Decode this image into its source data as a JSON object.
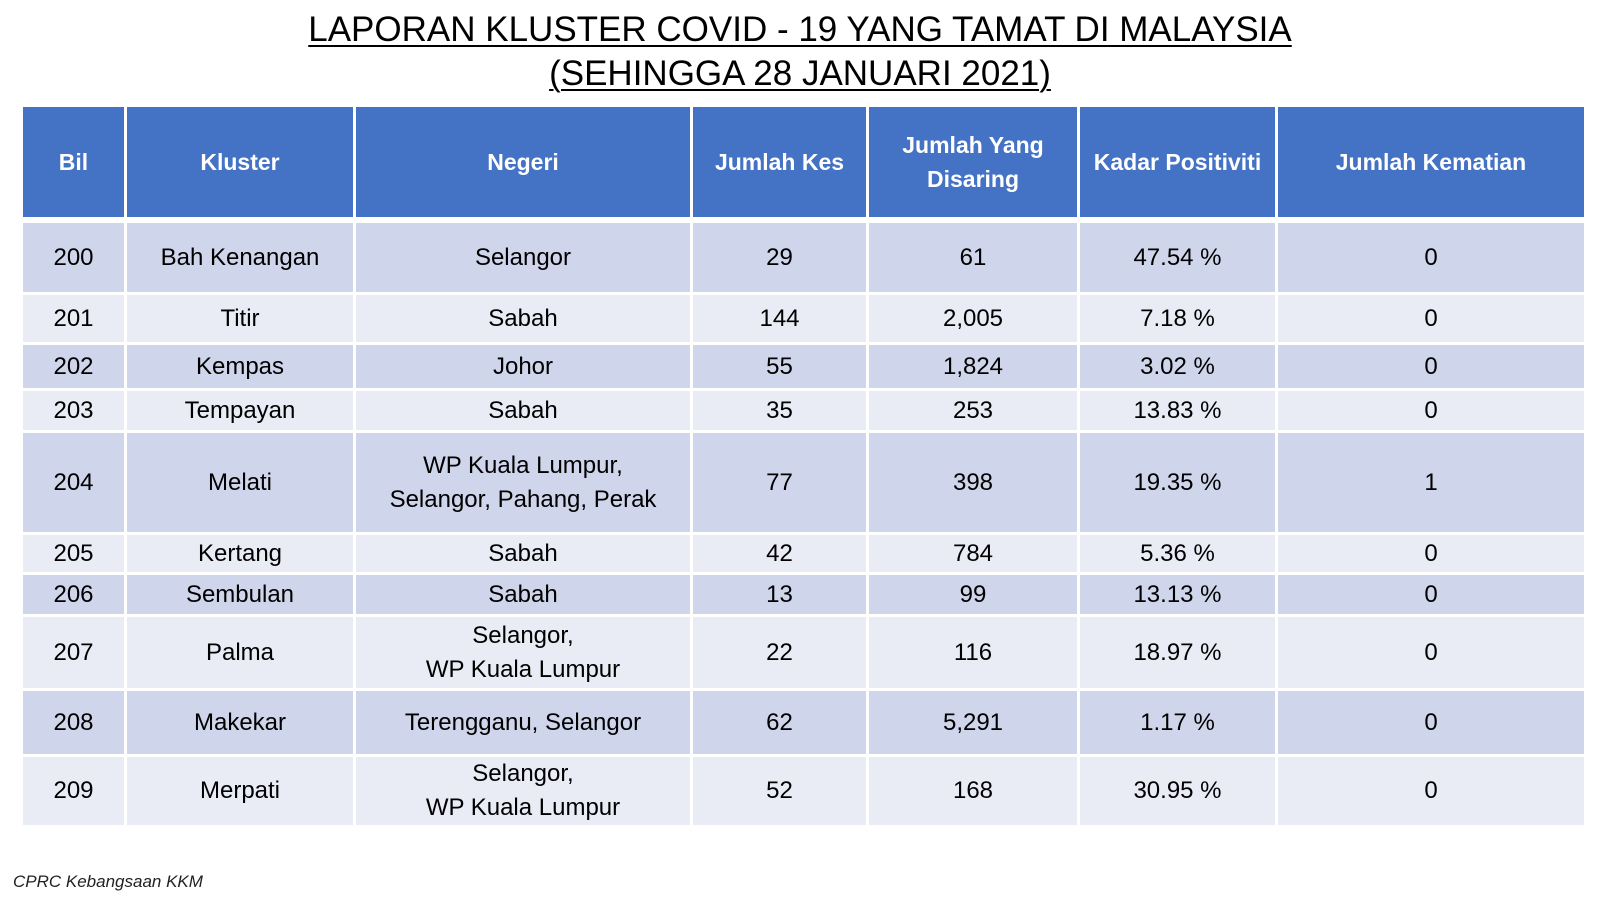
{
  "title": {
    "line1": "LAPORAN KLUSTER COVID - 19 YANG TAMAT DI MALAYSIA",
    "line2": "(SEHINGGA 28 JANUARI 2021)"
  },
  "table": {
    "headers": [
      "Bil",
      "Kluster",
      "Negeri",
      "Jumlah Kes",
      "Jumlah Yang Disaring",
      "Kadar Positiviti",
      "Jumlah Kematian"
    ],
    "rows": [
      {
        "bil": "200",
        "kluster": "Bah Kenangan",
        "negeri": "Selangor",
        "kes": "29",
        "disaring": "61",
        "positiviti": "47.54 %",
        "kematian": "0"
      },
      {
        "bil": "201",
        "kluster": "Titir",
        "negeri": "Sabah",
        "kes": "144",
        "disaring": "2,005",
        "positiviti": "7.18 %",
        "kematian": "0"
      },
      {
        "bil": "202",
        "kluster": "Kempas",
        "negeri": "Johor",
        "kes": "55",
        "disaring": "1,824",
        "positiviti": "3.02 %",
        "kematian": "0"
      },
      {
        "bil": "203",
        "kluster": "Tempayan",
        "negeri": "Sabah",
        "kes": "35",
        "disaring": "253",
        "positiviti": "13.83 %",
        "kematian": "0"
      },
      {
        "bil": "204",
        "kluster": "Melati",
        "negeri": "WP Kuala Lumpur,\nSelangor, Pahang, Perak",
        "kes": "77",
        "disaring": "398",
        "positiviti": "19.35 %",
        "kematian": "1"
      },
      {
        "bil": "205",
        "kluster": "Kertang",
        "negeri": "Sabah",
        "kes": "42",
        "disaring": "784",
        "positiviti": "5.36 %",
        "kematian": "0"
      },
      {
        "bil": "206",
        "kluster": "Sembulan",
        "negeri": "Sabah",
        "kes": "13",
        "disaring": "99",
        "positiviti": "13.13 %",
        "kematian": "0"
      },
      {
        "bil": "207",
        "kluster": "Palma",
        "negeri": "Selangor,\nWP Kuala Lumpur",
        "kes": "22",
        "disaring": "116",
        "positiviti": "18.97 %",
        "kematian": "0"
      },
      {
        "bil": "208",
        "kluster": "Makekar",
        "negeri": "Terengganu, Selangor",
        "kes": "62",
        "disaring": "5,291",
        "positiviti": "1.17 %",
        "kematian": "0"
      },
      {
        "bil": "209",
        "kluster": "Merpati",
        "negeri": "Selangor,\nWP Kuala Lumpur",
        "kes": "52",
        "disaring": "168",
        "positiviti": "30.95 %",
        "kematian": "0"
      }
    ]
  },
  "footer": {
    "source": "CPRC Kebangsaan KKM"
  }
}
